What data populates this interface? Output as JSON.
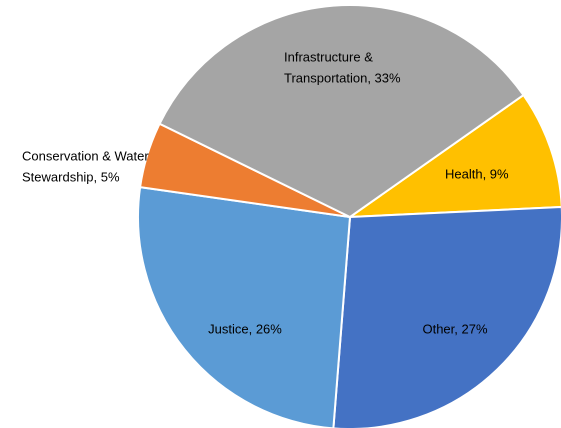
{
  "chart_data": {
    "type": "pie",
    "values": [
      9,
      27,
      26,
      5,
      33
    ],
    "value_labels": [
      [
        "Health, 9%"
      ],
      [
        "Other, 27%"
      ],
      [
        "Justice, 26%"
      ],
      [
        "Conservation & Water",
        "Stewardship, 5%"
      ],
      [
        "Infrastructure &",
        "Transportation, 33%"
      ]
    ],
    "colors": [
      "#ffc000",
      "#4472c4",
      "#5b9bd5",
      "#ed7d31",
      "#a5a5a5"
    ]
  }
}
